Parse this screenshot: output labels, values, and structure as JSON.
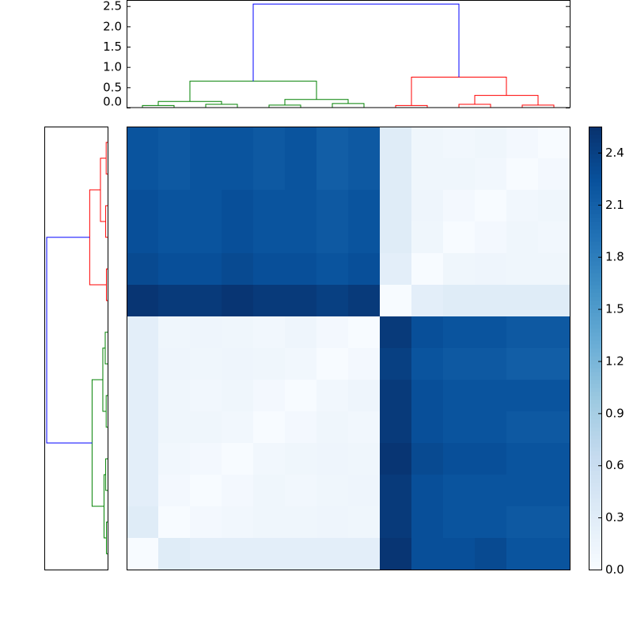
{
  "chart_data": {
    "type": "heatmap",
    "values": [
      [
        2.2,
        2.15,
        2.2,
        2.2,
        2.15,
        2.2,
        2.1,
        2.15,
        0.3,
        0.1,
        0.08,
        0.1,
        0.05,
        0
      ],
      [
        2.2,
        2.15,
        2.2,
        2.2,
        2.15,
        2.2,
        2.1,
        2.15,
        0.3,
        0.1,
        0.1,
        0.08,
        0,
        0.05
      ],
      [
        2.25,
        2.2,
        2.2,
        2.25,
        2.2,
        2.2,
        2.15,
        2.2,
        0.3,
        0.12,
        0.05,
        0,
        0.08,
        0.1
      ],
      [
        2.25,
        2.2,
        2.2,
        2.25,
        2.2,
        2.2,
        2.15,
        2.2,
        0.3,
        0.1,
        0,
        0.05,
        0.1,
        0.08
      ],
      [
        2.3,
        2.25,
        2.25,
        2.3,
        2.25,
        2.25,
        2.2,
        2.25,
        0.25,
        0,
        0.1,
        0.12,
        0.1,
        0.1
      ],
      [
        2.5,
        2.45,
        2.45,
        2.5,
        2.45,
        2.45,
        2.4,
        2.45,
        0,
        0.25,
        0.3,
        0.3,
        0.3,
        0.3
      ],
      [
        0.25,
        0.1,
        0.12,
        0.1,
        0.08,
        0.12,
        0.05,
        0,
        2.45,
        2.25,
        2.2,
        2.2,
        2.15,
        2.15
      ],
      [
        0.25,
        0.12,
        0.1,
        0.12,
        0.1,
        0.08,
        0,
        0.05,
        2.4,
        2.2,
        2.15,
        2.15,
        2.1,
        2.1
      ],
      [
        0.25,
        0.1,
        0.08,
        0.1,
        0.05,
        0,
        0.08,
        0.12,
        2.45,
        2.25,
        2.2,
        2.2,
        2.2,
        2.2
      ],
      [
        0.25,
        0.1,
        0.1,
        0.08,
        0,
        0.05,
        0.1,
        0.08,
        2.45,
        2.25,
        2.2,
        2.2,
        2.15,
        2.15
      ],
      [
        0.25,
        0.08,
        0.05,
        0,
        0.08,
        0.1,
        0.12,
        0.1,
        2.5,
        2.3,
        2.25,
        2.25,
        2.2,
        2.2
      ],
      [
        0.25,
        0.05,
        0,
        0.05,
        0.1,
        0.08,
        0.1,
        0.12,
        2.45,
        2.25,
        2.2,
        2.2,
        2.2,
        2.2
      ],
      [
        0.3,
        0,
        0.05,
        0.08,
        0.1,
        0.1,
        0.12,
        0.1,
        2.45,
        2.25,
        2.2,
        2.2,
        2.15,
        2.15
      ],
      [
        0,
        0.3,
        0.25,
        0.25,
        0.25,
        0.25,
        0.25,
        0.25,
        2.5,
        2.25,
        2.25,
        2.3,
        2.2,
        2.2
      ]
    ],
    "clim": [
      0,
      2.55
    ],
    "colormap": [
      "#f7fbff",
      "#deebf7",
      "#c6dbef",
      "#9ecae1",
      "#6baed6",
      "#4292c6",
      "#2171b5",
      "#08519c",
      "#08306b"
    ],
    "colorbar_ticks": [
      {
        "value": 0,
        "label": "0.0"
      },
      0.3,
      0.6,
      0.9,
      1.2,
      1.5,
      1.8,
      2.1,
      2.4
    ],
    "dendrogram": {
      "ylim": [
        0,
        2.65
      ],
      "yticks": [
        {
          "value": 0,
          "label": "0.0"
        },
        0.5,
        {
          "value": 1,
          "label": "1.0"
        },
        1.5,
        {
          "value": 2,
          "label": "2.0"
        },
        2.5
      ],
      "links": [
        {
          "x": [
            0.5,
            0.5,
            1.5,
            1.5
          ],
          "y": [
            0,
            0.05,
            0.05,
            0
          ],
          "color": "#008000"
        },
        {
          "x": [
            2.5,
            2.5,
            3.5,
            3.5
          ],
          "y": [
            0,
            0.08,
            0.08,
            0
          ],
          "color": "#008000"
        },
        {
          "x": [
            4.5,
            4.5,
            5.5,
            5.5
          ],
          "y": [
            0,
            0.06,
            0.06,
            0
          ],
          "color": "#008000"
        },
        {
          "x": [
            6.5,
            6.5,
            7.5,
            7.5
          ],
          "y": [
            0,
            0.1,
            0.1,
            0
          ],
          "color": "#008000"
        },
        {
          "x": [
            1,
            1,
            3,
            3
          ],
          "y": [
            0.05,
            0.15,
            0.15,
            0.08
          ],
          "color": "#008000"
        },
        {
          "x": [
            5,
            5,
            7,
            7
          ],
          "y": [
            0.06,
            0.2,
            0.2,
            0.1
          ],
          "color": "#008000"
        },
        {
          "x": [
            2,
            2,
            6,
            6
          ],
          "y": [
            0.15,
            0.65,
            0.65,
            0.2
          ],
          "color": "#008000"
        },
        {
          "x": [
            8.5,
            8.5,
            9.5,
            9.5
          ],
          "y": [
            0,
            0.05,
            0.05,
            0
          ],
          "color": "#ff0000"
        },
        {
          "x": [
            10.5,
            10.5,
            11.5,
            11.5
          ],
          "y": [
            0,
            0.08,
            0.08,
            0
          ],
          "color": "#ff0000"
        },
        {
          "x": [
            12.5,
            12.5,
            13.5,
            13.5
          ],
          "y": [
            0,
            0.06,
            0.06,
            0
          ],
          "color": "#ff0000"
        },
        {
          "x": [
            11,
            11,
            13,
            13
          ],
          "y": [
            0.08,
            0.3,
            0.3,
            0.06
          ],
          "color": "#ff0000"
        },
        {
          "x": [
            9,
            9,
            12,
            12
          ],
          "y": [
            0.05,
            0.75,
            0.75,
            0.3
          ],
          "color": "#ff0000"
        },
        {
          "x": [
            4,
            4,
            10.5,
            10.5
          ],
          "y": [
            0.65,
            2.55,
            2.55,
            0.75
          ],
          "color": "#0000ff"
        }
      ]
    }
  }
}
